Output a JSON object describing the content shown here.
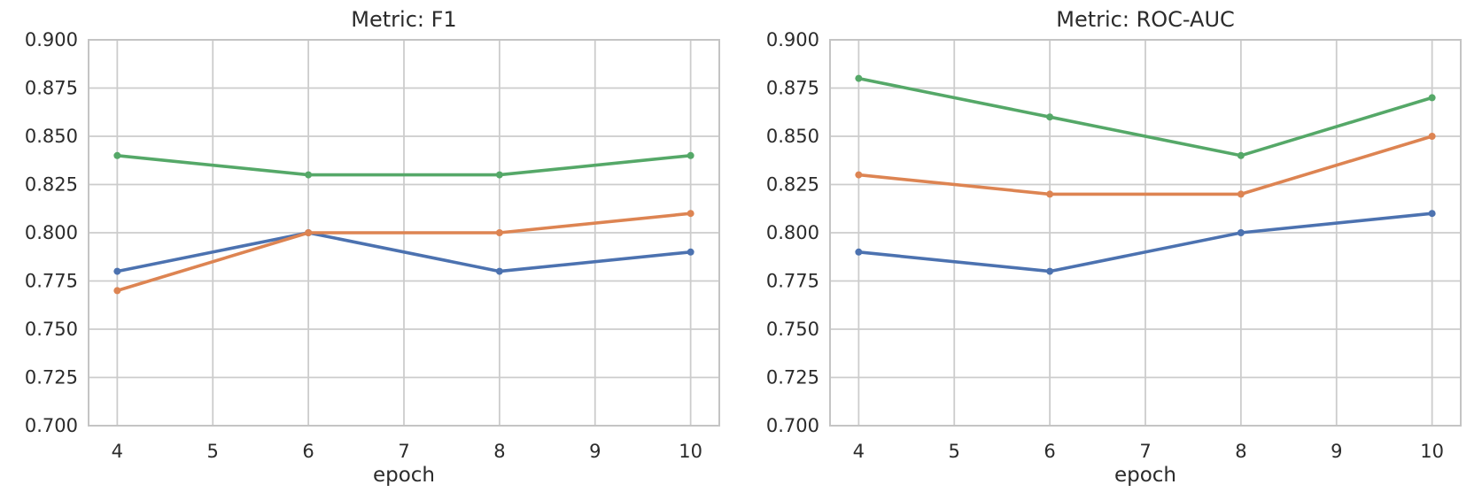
{
  "page": {
    "background": "#ffffff"
  },
  "style": {
    "grid_color": "#cccccc",
    "spine_color": "#c4c4c4",
    "text_color": "#2b2b2b",
    "line_width": 3.6,
    "marker_radius": 4,
    "grid_width": 1.8,
    "spine_width": 2
  },
  "chart_data": [
    {
      "type": "line",
      "title": "Metric: F1",
      "xlabel": "epoch",
      "ylabel": "",
      "grid": true,
      "legend": "none",
      "x": [
        4,
        6,
        8,
        10
      ],
      "xlim": [
        3.7,
        10.3
      ],
      "ylim": [
        0.7,
        0.9
      ],
      "xticks": [
        4,
        5,
        6,
        7,
        8,
        9,
        10
      ],
      "xtick_labels": [
        "4",
        "5",
        "6",
        "7",
        "8",
        "9",
        "10"
      ],
      "yticks": [
        0.7,
        0.725,
        0.75,
        0.775,
        0.8,
        0.825,
        0.85,
        0.875,
        0.9
      ],
      "ytick_labels": [
        "0.700",
        "0.725",
        "0.750",
        "0.775",
        "0.800",
        "0.825",
        "0.850",
        "0.875",
        "0.900"
      ],
      "series": [
        {
          "name": "blue-series",
          "color": "#4C72B0",
          "values": [
            0.78,
            0.8,
            0.78,
            0.79
          ]
        },
        {
          "name": "orange-series",
          "color": "#DD8452",
          "values": [
            0.77,
            0.8,
            0.8,
            0.81
          ]
        },
        {
          "name": "green-series",
          "color": "#55A868",
          "values": [
            0.84,
            0.83,
            0.83,
            0.84
          ]
        }
      ]
    },
    {
      "type": "line",
      "title": "Metric: ROC-AUC",
      "xlabel": "epoch",
      "ylabel": "",
      "grid": true,
      "legend": "none",
      "x": [
        4,
        6,
        8,
        10
      ],
      "xlim": [
        3.7,
        10.3
      ],
      "ylim": [
        0.7,
        0.9
      ],
      "xticks": [
        4,
        5,
        6,
        7,
        8,
        9,
        10
      ],
      "xtick_labels": [
        "4",
        "5",
        "6",
        "7",
        "8",
        "9",
        "10"
      ],
      "yticks": [
        0.7,
        0.725,
        0.75,
        0.775,
        0.8,
        0.825,
        0.85,
        0.875,
        0.9
      ],
      "ytick_labels": [
        "0.700",
        "0.725",
        "0.750",
        "0.775",
        "0.800",
        "0.825",
        "0.850",
        "0.875",
        "0.900"
      ],
      "series": [
        {
          "name": "blue-series",
          "color": "#4C72B0",
          "values": [
            0.79,
            0.78,
            0.8,
            0.81
          ]
        },
        {
          "name": "orange-series",
          "color": "#DD8452",
          "values": [
            0.83,
            0.82,
            0.82,
            0.85
          ]
        },
        {
          "name": "green-series",
          "color": "#55A868",
          "values": [
            0.88,
            0.86,
            0.84,
            0.87
          ]
        }
      ]
    }
  ]
}
